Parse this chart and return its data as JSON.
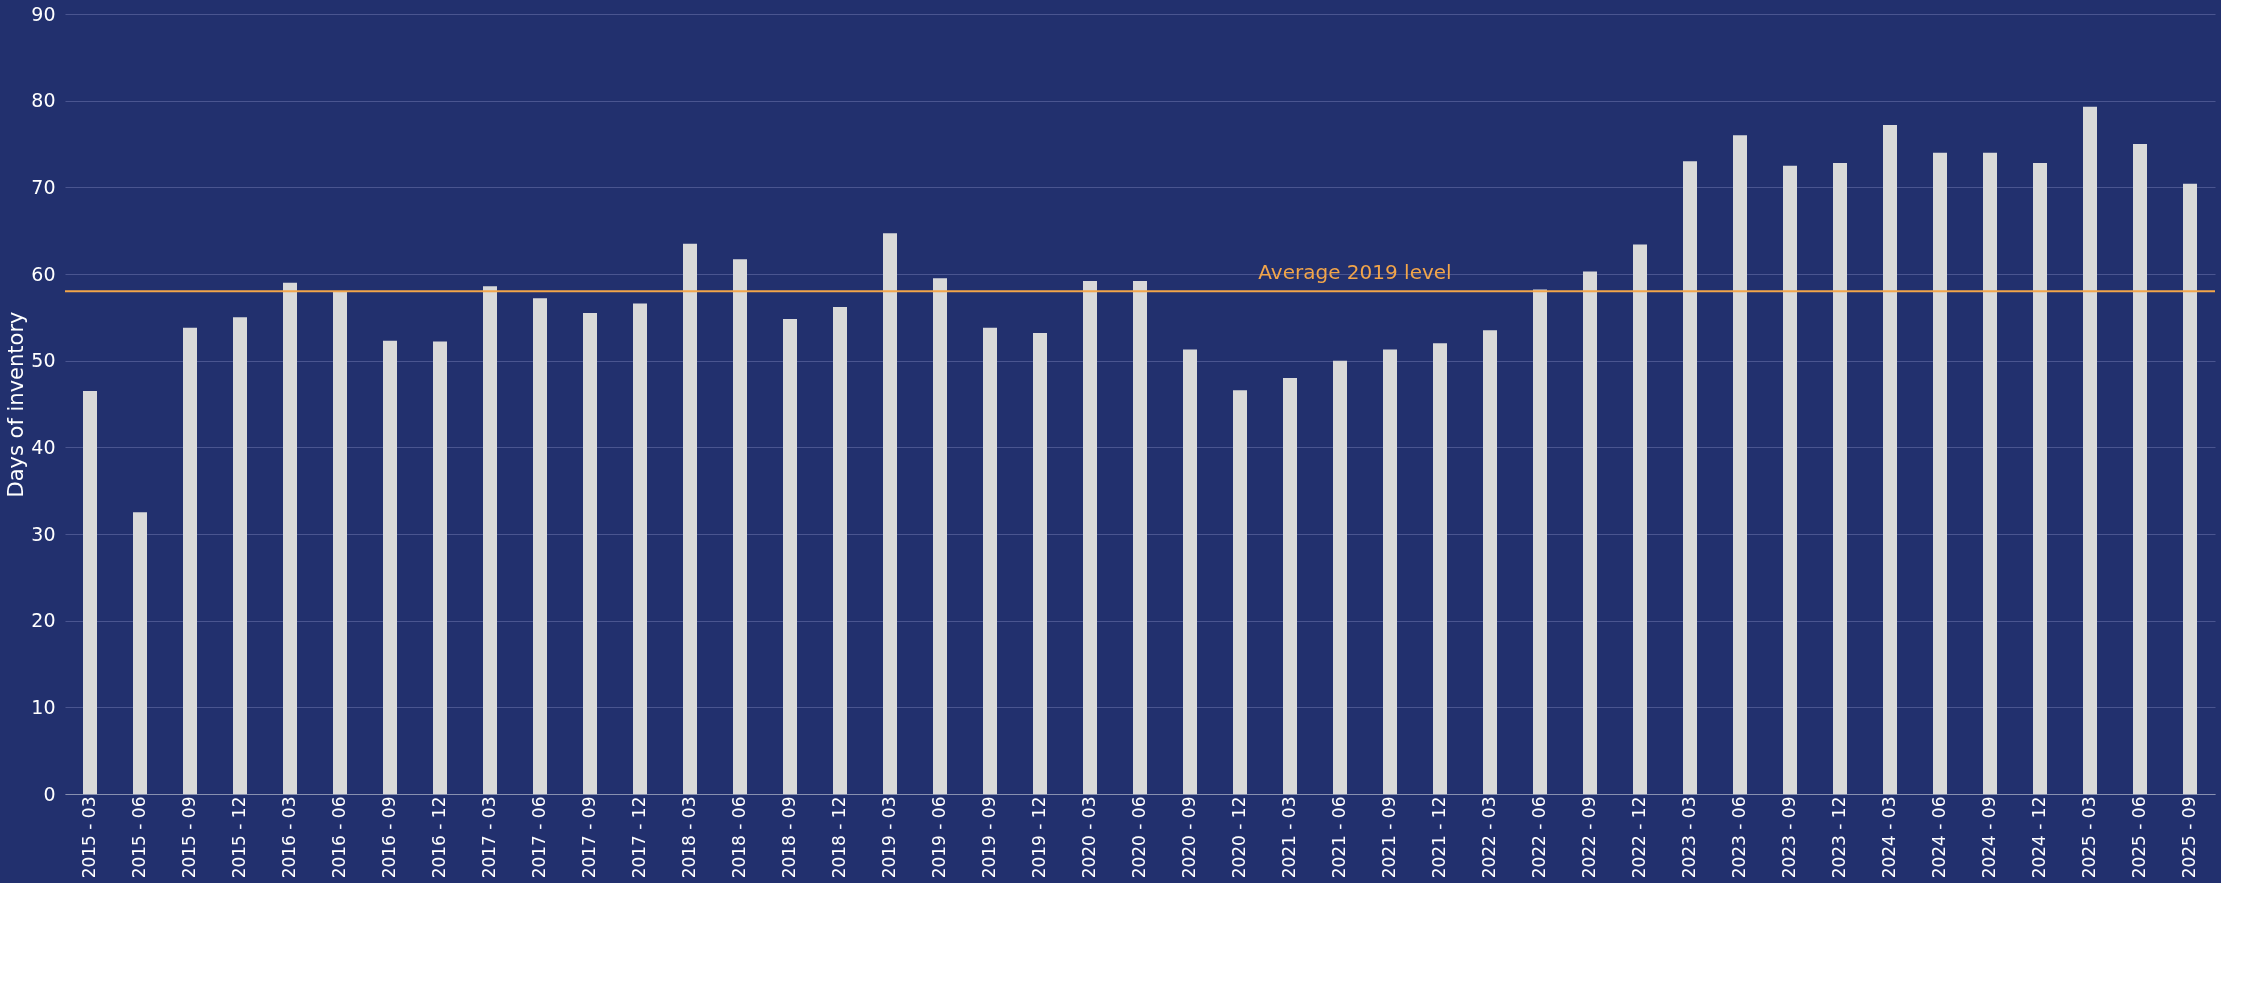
{
  "chart_data": {
    "type": "bar",
    "ylabel": "Days of inventory",
    "categories": [
      "2015 - 03",
      "2015 - 06",
      "2015 - 09",
      "2015 - 12",
      "2016 - 03",
      "2016 - 06",
      "2016 - 09",
      "2016 - 12",
      "2017 - 03",
      "2017 - 06",
      "2017 - 09",
      "2017 - 12",
      "2018 - 03",
      "2018 - 06",
      "2018 - 09",
      "2018 - 12",
      "2019 - 03",
      "2019 - 06",
      "2019 - 09",
      "2019 - 12",
      "2020 - 03",
      "2020 - 06",
      "2020 - 09",
      "2020 - 12",
      "2021 - 03",
      "2021 - 06",
      "2021 - 09",
      "2021 - 12",
      "2022 - 03",
      "2022 - 06",
      "2022 - 09",
      "2022 - 12",
      "2023 - 03",
      "2023 - 06",
      "2023 - 09",
      "2023 - 12",
      "2024 - 03",
      "2024 - 06",
      "2024 - 09",
      "2024 - 12",
      "2025 - 03",
      "2025 - 06",
      "2025 - 09"
    ],
    "values": [
      46.5,
      32.5,
      53.8,
      55,
      59,
      58,
      52.3,
      52.2,
      58.6,
      57.2,
      55.5,
      56.6,
      63.5,
      61.7,
      54.8,
      56.2,
      64.7,
      59.5,
      53.8,
      53.2,
      59.2,
      59.2,
      51.3,
      46.6,
      48,
      50,
      51.3,
      52,
      53.5,
      58.2,
      60.3,
      63.4,
      73,
      76,
      72.5,
      72.8,
      77.2,
      74,
      74,
      72.8,
      79.3,
      75,
      70.4
    ],
    "color": "#d9d9d9",
    "ylim": [
      0,
      90
    ],
    "yticks": [
      0,
      10,
      20,
      30,
      40,
      50,
      60,
      70,
      80,
      90
    ],
    "grid": "y",
    "ref_lines": [
      {
        "axis": "y",
        "value": 58,
        "label": "Average 2019 level",
        "color": "#f2a54a"
      }
    ]
  }
}
